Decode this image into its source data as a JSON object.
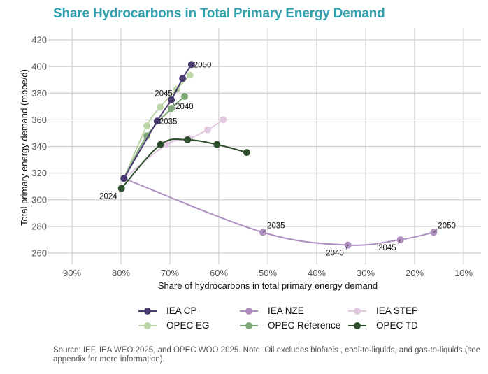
{
  "chart_data": {
    "type": "line",
    "title": "Share Hydrocarbons in Total Primary Energy Demand",
    "xlabel": "Share of hydrocarbons in total primary energy demand",
    "ylabel": "Total primary energy demand (mboe/d)",
    "xlim": [
      95,
      5
    ],
    "ylim": [
      252,
      425
    ],
    "x_reversed": true,
    "grid": true,
    "legend_position": "bottom",
    "x_ticks": [
      90,
      80,
      70,
      60,
      50,
      40,
      30,
      20,
      10
    ],
    "x_tick_labels": [
      "90%",
      "80%",
      "70%",
      "60%",
      "50%",
      "40%",
      "30%",
      "20%",
      "10%"
    ],
    "y_ticks": [
      260,
      280,
      300,
      320,
      340,
      360,
      380,
      400,
      420
    ],
    "y_tick_labels": [
      "260",
      "280",
      "300",
      "320",
      "340",
      "360",
      "380",
      "400",
      "420"
    ],
    "series": [
      {
        "name": "IEA CP",
        "color": "#4b3b73",
        "points": [
          [
            79.4,
            316
          ],
          [
            72.6,
            359
          ],
          [
            69.7,
            375
          ],
          [
            67.4,
            391
          ],
          [
            65.6,
            401.5
          ]
        ]
      },
      {
        "name": "IEA NZE",
        "color": "#b08fc0",
        "points": [
          [
            79.4,
            316
          ],
          [
            51.0,
            275.5
          ],
          [
            33.6,
            266
          ],
          [
            22.9,
            270
          ],
          [
            16.1,
            275.5
          ]
        ]
      },
      {
        "name": "IEA STEP",
        "color": "#e2c8e0",
        "points": [
          [
            79.4,
            316
          ],
          [
            70.7,
            341.5
          ],
          [
            66.0,
            346
          ],
          [
            62.3,
            352.5
          ],
          [
            59.1,
            360
          ]
        ]
      },
      {
        "name": "OPEC EG",
        "color": "#bcd6a8",
        "points": [
          [
            79.4,
            316
          ],
          [
            74.7,
            355.5
          ],
          [
            72.0,
            369.5
          ],
          [
            68.6,
            383
          ],
          [
            65.9,
            393.5
          ]
        ]
      },
      {
        "name": "OPEC Reference",
        "color": "#7fa877",
        "points": [
          [
            79.4,
            316
          ],
          [
            74.7,
            348
          ],
          [
            69.7,
            368.5
          ],
          [
            67.0,
            377.5
          ]
        ]
      },
      {
        "name": "OPEC TD",
        "color": "#2d4f2b",
        "points": [
          [
            79.9,
            308.5
          ],
          [
            71.9,
            341.5
          ],
          [
            66.4,
            345
          ],
          [
            60.4,
            341.5
          ],
          [
            54.3,
            335.5
          ]
        ]
      }
    ],
    "annotations": [
      {
        "text": "2024",
        "x": 79.9,
        "y": 308.5,
        "side": "below-left"
      },
      {
        "text": "2035",
        "x": 72.6,
        "y": 359,
        "side": "right"
      },
      {
        "text": "2040",
        "x": 69.7,
        "y": 375,
        "side": "below-right"
      },
      {
        "text": "2045",
        "x": 68.6,
        "y": 383,
        "side": "left"
      },
      {
        "text": "2050",
        "x": 65.6,
        "y": 401.5,
        "side": "right"
      },
      {
        "text": "2035",
        "x": 51.0,
        "y": 275.5,
        "side": "above-right"
      },
      {
        "text": "2040",
        "x": 33.6,
        "y": 266,
        "side": "below-left"
      },
      {
        "text": "2045",
        "x": 22.9,
        "y": 270,
        "side": "below-left"
      },
      {
        "text": "2050",
        "x": 16.1,
        "y": 275.5,
        "side": "above-right"
      }
    ]
  },
  "footer": "Source: IEF, IEA WEO 2025, and OPEC WOO 2025. Note: Oil excludes biofuels , coal-to-liquids, and gas-to-liquids (see appendix for more information)."
}
